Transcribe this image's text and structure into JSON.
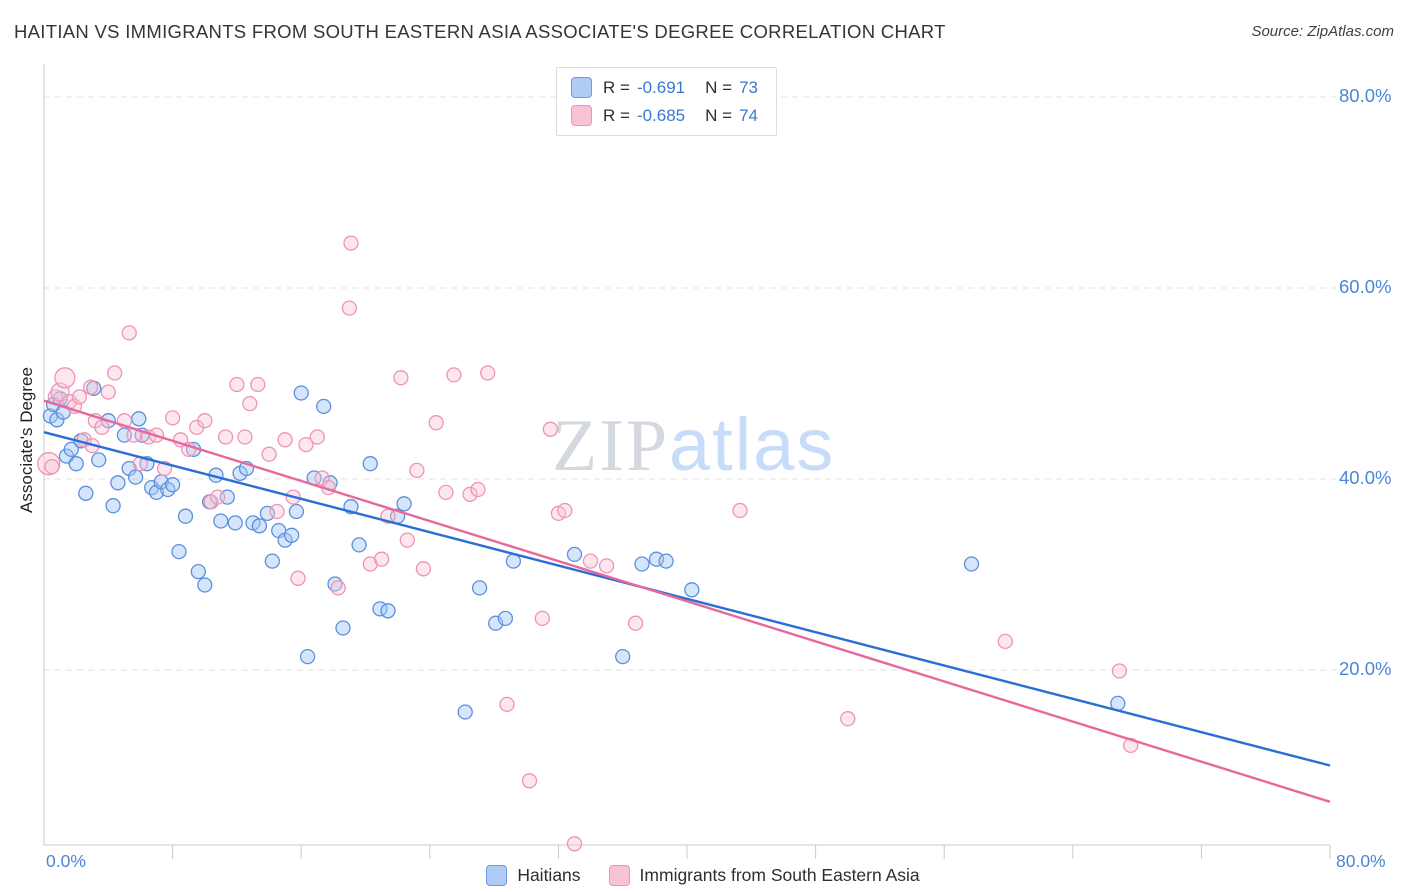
{
  "title": "HAITIAN VS IMMIGRANTS FROM SOUTH EASTERN ASIA ASSOCIATE'S DEGREE CORRELATION CHART",
  "source": "Source: ZipAtlas.com",
  "watermark": {
    "zip": "ZIP",
    "atlas": "atlas"
  },
  "legend_box": {
    "series": [
      {
        "r_label": "R =",
        "r_value": "-0.691",
        "n_label": "N =",
        "n_value": "73",
        "color": "#b0ccf4",
        "border": "#6b9be0"
      },
      {
        "r_label": "R =",
        "r_value": "-0.685",
        "n_label": "N =",
        "n_value": "74",
        "color": "#f8c3d7",
        "border": "#ef93b6"
      }
    ]
  },
  "axes": {
    "y_label": "Associate's Degree",
    "y_ticks": [
      {
        "label": "80.0%",
        "value": 80
      },
      {
        "label": "60.0%",
        "value": 60
      },
      {
        "label": "40.0%",
        "value": 40
      },
      {
        "label": "20.0%",
        "value": 20
      }
    ],
    "x_tick_left": "0.0%",
    "x_tick_right": "80.0%"
  },
  "bottom_legend": [
    {
      "label": "Haitians",
      "color": "#b0ccf4",
      "border": "#6b9be0"
    },
    {
      "label": "Immigrants from South Eastern Asia",
      "color": "#f8c3d7",
      "border": "#ef93b6"
    }
  ],
  "chart_data": {
    "type": "scatter",
    "title": "HAITIAN VS IMMIGRANTS FROM SOUTH EASTERN ASIA ASSOCIATE'S DEGREE CORRELATION CHART",
    "xlabel": "",
    "ylabel": "Associate's Degree",
    "x_range": [
      0,
      80
    ],
    "y_range": [
      0,
      85
    ],
    "grid": true,
    "legend_position": "bottom",
    "series": [
      {
        "name": "Haitians",
        "color": "#5c8fdc",
        "fill": "rgba(164,199,245,0.45)",
        "line_color": "#2a6fd4",
        "r": -0.691,
        "n": 73,
        "trend": {
          "x1": 0,
          "y1": 44.9,
          "x2": 80,
          "y2": 10.0
        },
        "points": [
          [
            0.4,
            46.6
          ],
          [
            0.6,
            47.8
          ],
          [
            0.8,
            46.2
          ],
          [
            1.0,
            48.4
          ],
          [
            1.2,
            47.0
          ],
          [
            1.4,
            42.4
          ],
          [
            1.7,
            43.1
          ],
          [
            2.0,
            41.6
          ],
          [
            2.3,
            44.0
          ],
          [
            2.6,
            38.5
          ],
          [
            3.1,
            49.5
          ],
          [
            3.4,
            42.0
          ],
          [
            4.0,
            46.1
          ],
          [
            4.3,
            37.2
          ],
          [
            4.6,
            39.6
          ],
          [
            5.0,
            44.6
          ],
          [
            5.3,
            41.1
          ],
          [
            5.7,
            40.2
          ],
          [
            5.9,
            46.3
          ],
          [
            6.1,
            44.6
          ],
          [
            6.4,
            41.6
          ],
          [
            6.7,
            39.1
          ],
          [
            7.0,
            38.6
          ],
          [
            7.3,
            39.7
          ],
          [
            7.7,
            38.9
          ],
          [
            8.0,
            39.4
          ],
          [
            8.4,
            32.4
          ],
          [
            8.8,
            36.1
          ],
          [
            9.3,
            43.1
          ],
          [
            9.6,
            30.3
          ],
          [
            10.0,
            28.9
          ],
          [
            10.3,
            37.6
          ],
          [
            10.7,
            40.4
          ],
          [
            11.0,
            35.6
          ],
          [
            11.4,
            38.1
          ],
          [
            11.9,
            35.4
          ],
          [
            12.2,
            40.6
          ],
          [
            12.6,
            41.1
          ],
          [
            13.0,
            35.4
          ],
          [
            13.4,
            35.1
          ],
          [
            13.9,
            36.4
          ],
          [
            14.2,
            31.4
          ],
          [
            14.6,
            34.6
          ],
          [
            15.0,
            33.6
          ],
          [
            15.4,
            34.1
          ],
          [
            15.7,
            36.6
          ],
          [
            16.0,
            49.0
          ],
          [
            16.4,
            21.4
          ],
          [
            16.8,
            40.1
          ],
          [
            17.4,
            47.6
          ],
          [
            17.8,
            39.6
          ],
          [
            18.1,
            29.0
          ],
          [
            18.6,
            24.4
          ],
          [
            19.1,
            37.1
          ],
          [
            19.6,
            33.1
          ],
          [
            20.3,
            41.6
          ],
          [
            20.9,
            26.4
          ],
          [
            21.4,
            26.2
          ],
          [
            22.0,
            36.1
          ],
          [
            22.4,
            37.4
          ],
          [
            26.2,
            15.6
          ],
          [
            27.1,
            28.6
          ],
          [
            28.1,
            24.9
          ],
          [
            28.7,
            25.4
          ],
          [
            29.2,
            31.4
          ],
          [
            33.0,
            32.1
          ],
          [
            36.0,
            21.4
          ],
          [
            37.2,
            31.1
          ],
          [
            38.1,
            31.6
          ],
          [
            38.7,
            31.4
          ],
          [
            40.3,
            28.4
          ],
          [
            57.7,
            31.1
          ],
          [
            66.8,
            16.5
          ]
        ]
      },
      {
        "name": "Immigrants from South Eastern Asia",
        "color": "#ef93b6",
        "fill": "rgba(248,194,213,0.4)",
        "line_color": "#e8679d",
        "r": -0.685,
        "n": 74,
        "trend": {
          "x1": 0,
          "y1": 48.2,
          "x2": 80,
          "y2": 6.2
        },
        "points": [
          [
            0.3,
            41.6,
            11
          ],
          [
            0.5,
            41.3
          ],
          [
            0.7,
            48.6
          ],
          [
            1.0,
            49.1,
            9
          ],
          [
            1.3,
            50.6,
            10
          ],
          [
            1.6,
            48.1
          ],
          [
            1.9,
            47.6
          ],
          [
            2.2,
            48.6
          ],
          [
            2.5,
            44.1
          ],
          [
            2.9,
            49.6
          ],
          [
            3.0,
            43.5
          ],
          [
            3.2,
            46.1
          ],
          [
            3.6,
            45.4
          ],
          [
            4.0,
            49.1
          ],
          [
            4.4,
            51.1
          ],
          [
            5.0,
            46.1
          ],
          [
            5.3,
            55.3
          ],
          [
            5.6,
            44.6
          ],
          [
            6.0,
            41.6
          ],
          [
            6.5,
            44.4
          ],
          [
            7.0,
            44.6
          ],
          [
            7.5,
            41.1
          ],
          [
            8.0,
            46.4
          ],
          [
            8.5,
            44.1
          ],
          [
            9.0,
            43.1
          ],
          [
            9.5,
            45.4
          ],
          [
            10.0,
            46.1
          ],
          [
            10.4,
            37.6
          ],
          [
            10.8,
            38.1
          ],
          [
            11.3,
            44.4
          ],
          [
            12.0,
            49.9
          ],
          [
            12.5,
            44.4
          ],
          [
            12.8,
            47.9
          ],
          [
            13.3,
            49.9
          ],
          [
            14.0,
            42.6
          ],
          [
            14.5,
            36.6
          ],
          [
            15.0,
            44.1
          ],
          [
            15.5,
            38.1
          ],
          [
            15.8,
            29.6
          ],
          [
            16.3,
            43.6
          ],
          [
            17.0,
            44.4
          ],
          [
            17.3,
            40.1
          ],
          [
            17.7,
            39.1
          ],
          [
            18.3,
            28.6
          ],
          [
            19.0,
            57.9
          ],
          [
            19.1,
            64.7
          ],
          [
            20.3,
            31.1
          ],
          [
            21.0,
            31.6
          ],
          [
            21.4,
            36.1
          ],
          [
            22.2,
            50.6
          ],
          [
            22.6,
            33.6
          ],
          [
            23.2,
            40.9
          ],
          [
            23.6,
            30.6
          ],
          [
            24.4,
            45.9
          ],
          [
            25.0,
            38.6
          ],
          [
            25.5,
            50.9
          ],
          [
            26.5,
            38.4
          ],
          [
            27.0,
            38.9
          ],
          [
            27.6,
            51.1
          ],
          [
            28.8,
            16.4
          ],
          [
            30.2,
            8.4
          ],
          [
            31.0,
            25.4
          ],
          [
            31.5,
            45.2
          ],
          [
            32.0,
            36.4
          ],
          [
            32.4,
            36.7
          ],
          [
            33.0,
            1.8
          ],
          [
            34.0,
            31.4
          ],
          [
            35.0,
            30.9
          ],
          [
            36.8,
            24.9
          ],
          [
            43.3,
            36.7
          ],
          [
            50.0,
            14.9
          ],
          [
            59.8,
            23.0
          ],
          [
            66.9,
            19.9
          ],
          [
            67.6,
            12.1
          ]
        ]
      }
    ]
  }
}
